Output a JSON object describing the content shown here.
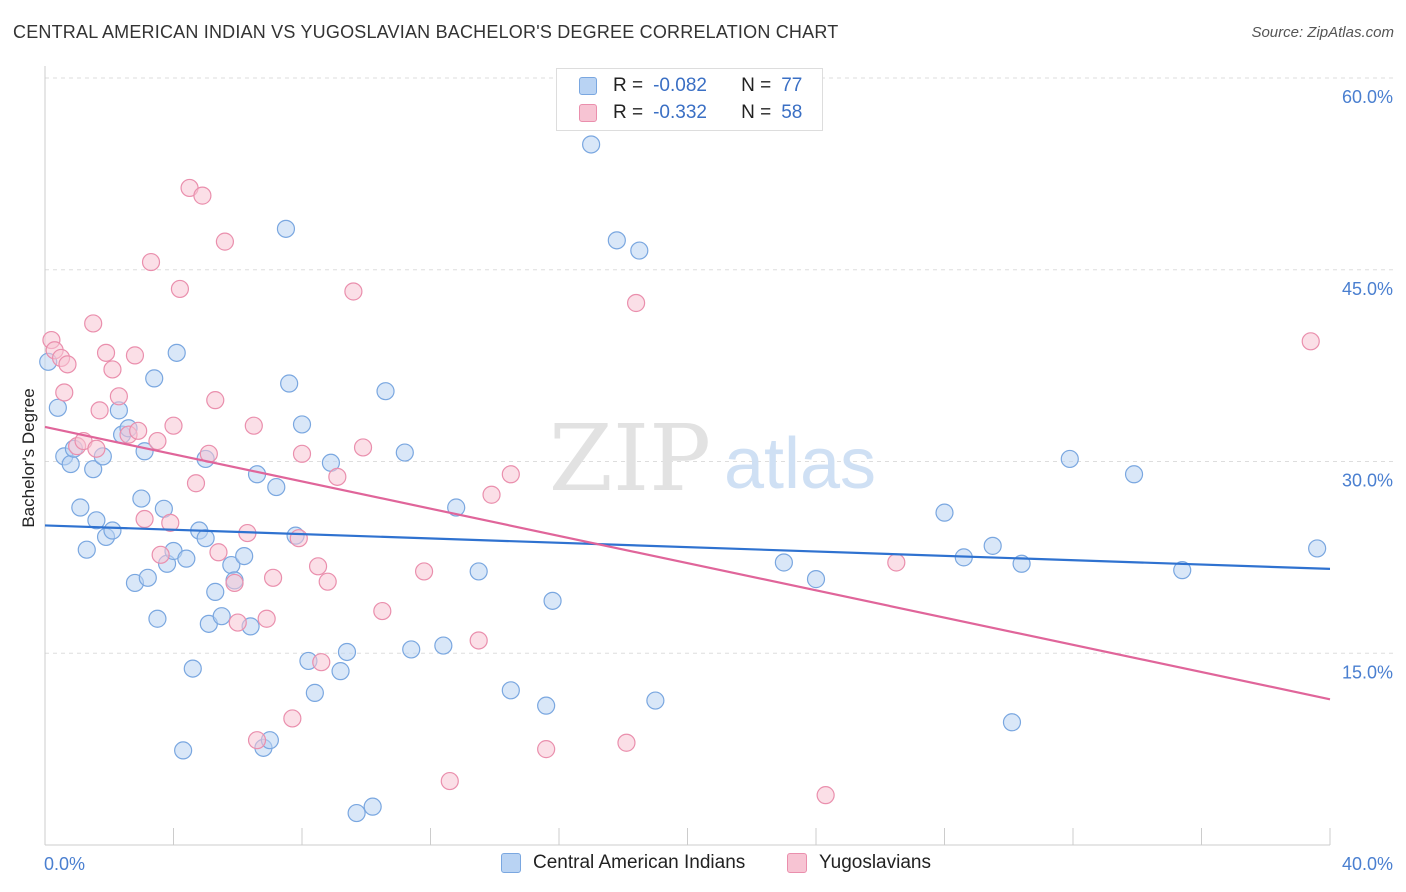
{
  "title": "CENTRAL AMERICAN INDIAN VS YUGOSLAVIAN BACHELOR'S DEGREE CORRELATION CHART",
  "source": "Source: ZipAtlas.com",
  "watermark": {
    "zip": "ZIP",
    "atlas": "atlas"
  },
  "legend": {
    "rows": [
      {
        "r_label": "R =",
        "r_value": "-0.082",
        "n_label": "N =",
        "n_value": "77"
      },
      {
        "r_label": "R =",
        "r_value": "-0.332",
        "n_label": "N =",
        "n_value": "58"
      }
    ]
  },
  "colors": {
    "blue_fill": "#b9d3f3",
    "blue_stroke": "#7aa7e0",
    "blue_line": "#2f72d0",
    "pink_fill": "#f7c4d3",
    "pink_stroke": "#ea8fad",
    "pink_line": "#e0659a",
    "grid": "#dddddd",
    "tick_text": "#4a7fd0"
  },
  "chart_data": {
    "type": "scatter",
    "title": "CENTRAL AMERICAN INDIAN VS YUGOSLAVIAN BACHELOR'S DEGREE CORRELATION CHART",
    "xlabel": "",
    "ylabel": "Bachelor's Degree",
    "xlim": [
      0,
      40
    ],
    "ylim": [
      0,
      60
    ],
    "x_tick_labels": [
      "0.0%",
      "40.0%"
    ],
    "y_ticks": [
      15,
      30,
      45,
      60
    ],
    "y_tick_labels": [
      "15.0%",
      "30.0%",
      "45.0%",
      "60.0%"
    ],
    "grid": true,
    "legend_placement": "bottom-center",
    "series": [
      {
        "name": "Central American Indians",
        "color": "#7aa7e0",
        "trend": {
          "x": [
            0,
            40
          ],
          "y": [
            25.0,
            21.6
          ]
        },
        "points": [
          [
            0.1,
            37.8
          ],
          [
            0.4,
            34.2
          ],
          [
            0.6,
            30.4
          ],
          [
            0.8,
            29.8
          ],
          [
            0.9,
            31.0
          ],
          [
            1.1,
            26.4
          ],
          [
            1.3,
            23.1
          ],
          [
            1.5,
            29.4
          ],
          [
            1.6,
            25.4
          ],
          [
            1.8,
            30.4
          ],
          [
            1.9,
            24.1
          ],
          [
            2.1,
            24.6
          ],
          [
            2.3,
            34.0
          ],
          [
            2.4,
            32.1
          ],
          [
            2.6,
            32.6
          ],
          [
            2.8,
            20.5
          ],
          [
            3.0,
            27.1
          ],
          [
            3.2,
            20.9
          ],
          [
            3.4,
            36.5
          ],
          [
            3.5,
            17.7
          ],
          [
            3.7,
            26.3
          ],
          [
            3.8,
            22.0
          ],
          [
            4.0,
            23.0
          ],
          [
            4.1,
            38.5
          ],
          [
            4.4,
            22.4
          ],
          [
            4.6,
            13.8
          ],
          [
            4.8,
            24.6
          ],
          [
            5.0,
            24.0
          ],
          [
            5.1,
            17.3
          ],
          [
            5.3,
            19.8
          ],
          [
            5.5,
            17.9
          ],
          [
            5.8,
            21.9
          ],
          [
            5.9,
            20.7
          ],
          [
            6.2,
            22.6
          ],
          [
            6.4,
            17.1
          ],
          [
            6.6,
            29.0
          ],
          [
            6.8,
            7.6
          ],
          [
            7.0,
            8.2
          ],
          [
            7.2,
            28.0
          ],
          [
            7.5,
            48.2
          ],
          [
            7.6,
            36.1
          ],
          [
            7.8,
            24.2
          ],
          [
            8.0,
            32.9
          ],
          [
            8.2,
            14.4
          ],
          [
            8.4,
            11.9
          ],
          [
            8.9,
            29.9
          ],
          [
            9.2,
            13.6
          ],
          [
            9.4,
            15.1
          ],
          [
            9.7,
            2.5
          ],
          [
            10.2,
            3.0
          ],
          [
            10.6,
            35.5
          ],
          [
            11.2,
            30.7
          ],
          [
            11.4,
            15.3
          ],
          [
            12.4,
            15.6
          ],
          [
            12.8,
            26.4
          ],
          [
            13.5,
            21.4
          ],
          [
            14.5,
            12.1
          ],
          [
            15.6,
            10.9
          ],
          [
            15.8,
            19.1
          ],
          [
            17.0,
            54.8
          ],
          [
            17.8,
            47.3
          ],
          [
            18.5,
            46.5
          ],
          [
            19.0,
            11.3
          ],
          [
            23.0,
            22.1
          ],
          [
            24.0,
            20.8
          ],
          [
            28.0,
            26.0
          ],
          [
            28.6,
            22.5
          ],
          [
            29.5,
            23.4
          ],
          [
            30.1,
            9.6
          ],
          [
            30.4,
            22.0
          ],
          [
            31.9,
            30.2
          ],
          [
            33.9,
            29.0
          ],
          [
            35.4,
            21.5
          ],
          [
            39.6,
            23.2
          ],
          [
            5.0,
            30.2
          ],
          [
            3.1,
            30.8
          ],
          [
            4.3,
            7.4
          ]
        ]
      },
      {
        "name": "Yugoslavians",
        "color": "#ea8fad",
        "trend": {
          "x": [
            0,
            40
          ],
          "y": [
            32.7,
            11.4
          ]
        },
        "points": [
          [
            0.2,
            39.5
          ],
          [
            0.3,
            38.7
          ],
          [
            0.5,
            38.1
          ],
          [
            0.6,
            35.4
          ],
          [
            0.7,
            37.6
          ],
          [
            1.0,
            31.2
          ],
          [
            1.2,
            31.6
          ],
          [
            1.5,
            40.8
          ],
          [
            1.7,
            34.0
          ],
          [
            1.9,
            38.5
          ],
          [
            2.1,
            37.2
          ],
          [
            2.3,
            35.1
          ],
          [
            2.6,
            32.1
          ],
          [
            2.8,
            38.3
          ],
          [
            3.1,
            25.5
          ],
          [
            3.3,
            45.6
          ],
          [
            3.5,
            31.6
          ],
          [
            3.6,
            22.7
          ],
          [
            3.9,
            25.2
          ],
          [
            4.0,
            32.8
          ],
          [
            4.2,
            43.5
          ],
          [
            4.5,
            51.4
          ],
          [
            4.7,
            28.3
          ],
          [
            4.9,
            50.8
          ],
          [
            5.1,
            30.6
          ],
          [
            5.3,
            34.8
          ],
          [
            5.4,
            22.9
          ],
          [
            5.6,
            47.2
          ],
          [
            5.9,
            20.5
          ],
          [
            6.0,
            17.4
          ],
          [
            6.3,
            24.4
          ],
          [
            6.5,
            32.8
          ],
          [
            6.6,
            8.2
          ],
          [
            6.9,
            17.7
          ],
          [
            7.1,
            20.9
          ],
          [
            7.7,
            9.9
          ],
          [
            7.9,
            24.0
          ],
          [
            8.0,
            30.6
          ],
          [
            8.5,
            21.8
          ],
          [
            8.6,
            14.3
          ],
          [
            8.8,
            20.6
          ],
          [
            9.1,
            28.8
          ],
          [
            9.6,
            43.3
          ],
          [
            9.9,
            31.1
          ],
          [
            10.5,
            18.3
          ],
          [
            11.8,
            21.4
          ],
          [
            12.6,
            5.0
          ],
          [
            13.5,
            16.0
          ],
          [
            13.9,
            27.4
          ],
          [
            14.5,
            29.0
          ],
          [
            15.6,
            7.5
          ],
          [
            18.1,
            8.0
          ],
          [
            18.4,
            42.4
          ],
          [
            24.3,
            3.9
          ],
          [
            26.5,
            22.1
          ],
          [
            39.4,
            39.4
          ],
          [
            1.6,
            31.0
          ],
          [
            2.9,
            32.4
          ]
        ]
      }
    ]
  }
}
